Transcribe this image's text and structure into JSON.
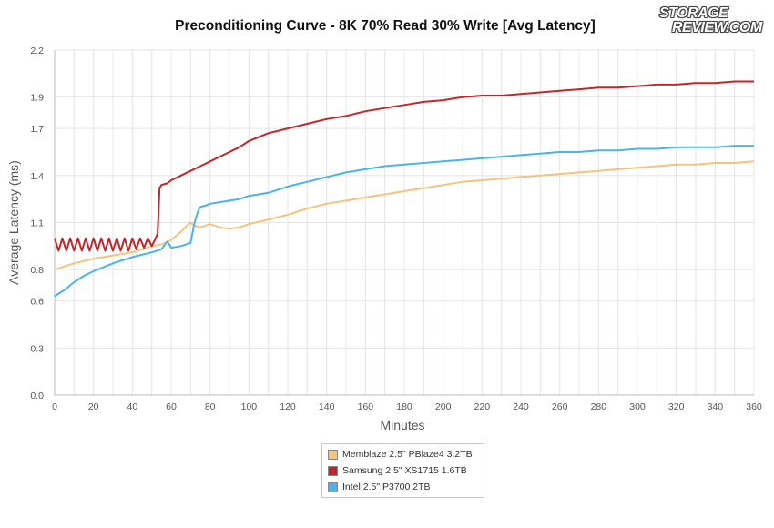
{
  "chart_data": {
    "type": "line",
    "title": "Preconditioning Curve - 8K 70% Read 30% Write [Avg Latency]",
    "xlabel": "Minutes",
    "ylabel": "Average Latency (ms)",
    "xlim": [
      0,
      360
    ],
    "ylim": [
      0,
      2.2
    ],
    "xticks": [
      0,
      20,
      40,
      60,
      80,
      100,
      120,
      140,
      160,
      180,
      200,
      220,
      240,
      260,
      280,
      300,
      320,
      340,
      360
    ],
    "yticks": [
      0.0,
      0.3,
      0.6,
      0.8,
      1.1,
      1.4,
      1.7,
      1.9,
      2.2
    ],
    "ytick_labels": [
      "0.0",
      "0.3",
      "0.6",
      "0.8",
      "1.1",
      "1.4",
      "1.7",
      "1.9",
      "2.2"
    ],
    "grid": true,
    "legend_position": "bottom-center",
    "series": [
      {
        "name": "Memblaze 2.5\" PBlaze4 3.2TB",
        "color": "#f2c47e",
        "x": [
          0,
          5,
          10,
          20,
          30,
          40,
          50,
          55,
          60,
          62,
          65,
          68,
          70,
          72,
          75,
          80,
          85,
          90,
          95,
          100,
          110,
          120,
          130,
          140,
          150,
          160,
          170,
          180,
          190,
          200,
          210,
          220,
          230,
          240,
          250,
          260,
          270,
          280,
          290,
          300,
          310,
          320,
          330,
          340,
          350,
          360
        ],
        "y": [
          0.8,
          0.82,
          0.84,
          0.87,
          0.89,
          0.91,
          0.95,
          0.96,
          0.99,
          1.01,
          1.04,
          1.08,
          1.1,
          1.08,
          1.07,
          1.09,
          1.07,
          1.06,
          1.07,
          1.09,
          1.12,
          1.15,
          1.19,
          1.22,
          1.24,
          1.26,
          1.28,
          1.3,
          1.32,
          1.34,
          1.36,
          1.37,
          1.38,
          1.39,
          1.4,
          1.41,
          1.42,
          1.43,
          1.44,
          1.45,
          1.46,
          1.47,
          1.47,
          1.48,
          1.48,
          1.49
        ]
      },
      {
        "name": "Samsung 2.5\" XS1715 1.6TB",
        "color": "#c0272d",
        "x": [
          0,
          2,
          4,
          6,
          8,
          10,
          12,
          14,
          16,
          18,
          20,
          22,
          24,
          26,
          28,
          30,
          32,
          34,
          36,
          38,
          40,
          42,
          44,
          46,
          48,
          50,
          52,
          53,
          54,
          55,
          58,
          60,
          65,
          70,
          75,
          80,
          85,
          90,
          95,
          100,
          110,
          120,
          130,
          140,
          150,
          160,
          170,
          180,
          190,
          200,
          210,
          220,
          230,
          240,
          250,
          260,
          270,
          280,
          290,
          300,
          310,
          320,
          330,
          340,
          350,
          360
        ],
        "y": [
          1.0,
          0.92,
          1.0,
          0.92,
          1.0,
          0.92,
          1.0,
          0.92,
          1.0,
          0.92,
          1.0,
          0.92,
          1.0,
          0.92,
          1.0,
          0.92,
          1.0,
          0.92,
          1.0,
          0.92,
          1.0,
          0.93,
          1.0,
          0.94,
          1.0,
          0.95,
          1.0,
          1.03,
          1.32,
          1.34,
          1.35,
          1.37,
          1.4,
          1.43,
          1.46,
          1.49,
          1.52,
          1.55,
          1.58,
          1.62,
          1.67,
          1.7,
          1.73,
          1.76,
          1.78,
          1.81,
          1.83,
          1.85,
          1.87,
          1.88,
          1.9,
          1.91,
          1.91,
          1.92,
          1.93,
          1.94,
          1.95,
          1.96,
          1.96,
          1.97,
          1.98,
          1.98,
          1.99,
          1.99,
          2.0,
          2.0
        ]
      },
      {
        "name": "Intel 2.5\" P3700 2TB",
        "color": "#4bb4e6",
        "x": [
          0,
          5,
          10,
          15,
          20,
          30,
          40,
          50,
          55,
          58,
          60,
          65,
          70,
          72,
          74,
          75,
          78,
          80,
          85,
          90,
          95,
          100,
          110,
          120,
          130,
          140,
          150,
          160,
          170,
          180,
          190,
          200,
          210,
          220,
          230,
          240,
          250,
          260,
          270,
          280,
          290,
          300,
          310,
          320,
          330,
          340,
          350,
          360
        ],
        "y": [
          0.63,
          0.67,
          0.72,
          0.76,
          0.79,
          0.84,
          0.88,
          0.91,
          0.93,
          0.98,
          0.94,
          0.95,
          0.97,
          1.1,
          1.18,
          1.2,
          1.21,
          1.22,
          1.23,
          1.24,
          1.25,
          1.27,
          1.29,
          1.33,
          1.36,
          1.39,
          1.42,
          1.44,
          1.46,
          1.47,
          1.48,
          1.49,
          1.5,
          1.51,
          1.52,
          1.53,
          1.54,
          1.55,
          1.55,
          1.56,
          1.56,
          1.57,
          1.57,
          1.58,
          1.58,
          1.58,
          1.59,
          1.59
        ]
      }
    ]
  }
}
